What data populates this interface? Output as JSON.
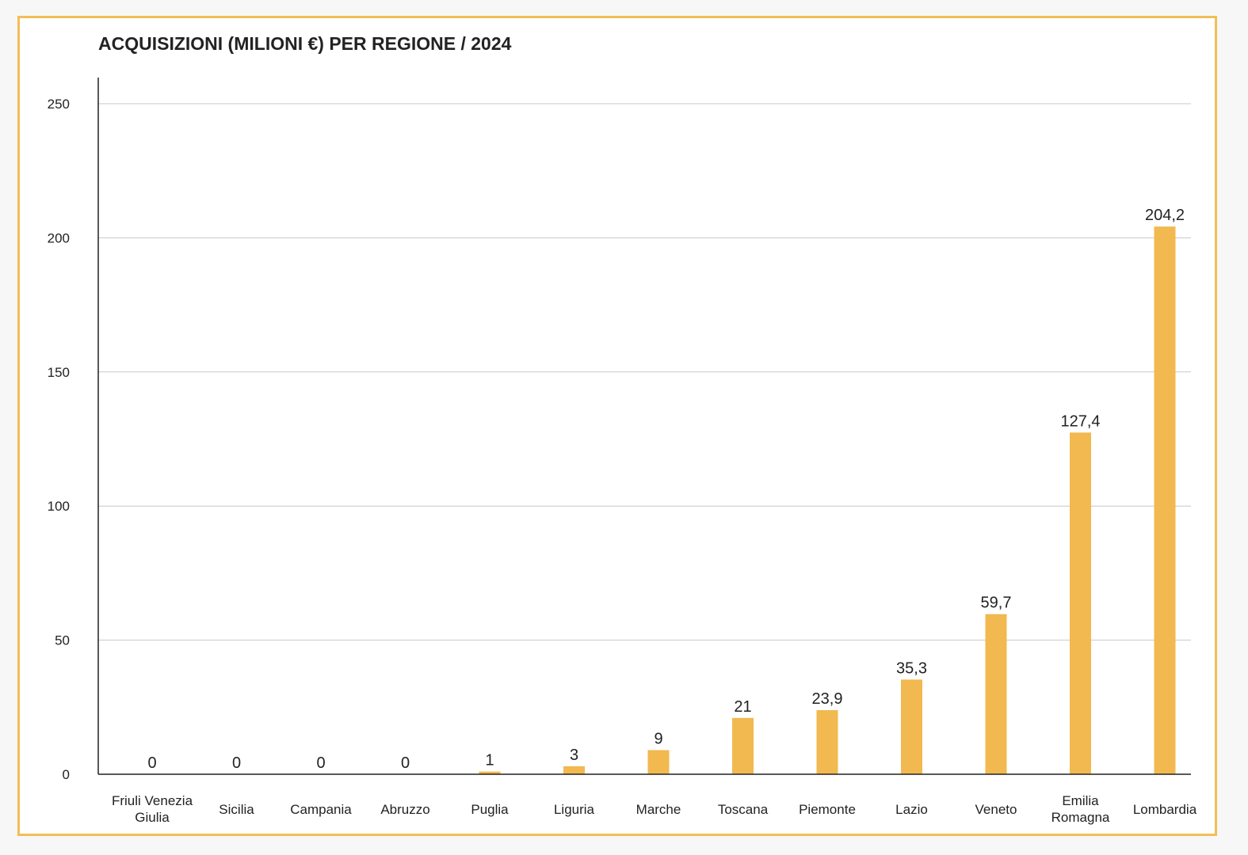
{
  "chart_data": {
    "type": "bar",
    "title": "ACQUISIZIONI (MILIONI €) PER REGIONE / 2024",
    "categories": [
      [
        "Friuli Venezia",
        "Giulia"
      ],
      [
        "Sicilia"
      ],
      [
        "Campania"
      ],
      [
        "Abruzzo"
      ],
      [
        "Puglia"
      ],
      [
        "Liguria"
      ],
      [
        "Marche"
      ],
      [
        "Toscana"
      ],
      [
        "Piemonte"
      ],
      [
        "Lazio"
      ],
      [
        "Veneto"
      ],
      [
        "Emilia",
        "Romagna"
      ],
      [
        "Lombardia"
      ]
    ],
    "values": [
      0,
      0,
      0,
      0,
      1,
      3,
      9,
      21,
      23.9,
      35.3,
      59.7,
      127.4,
      204.2
    ],
    "value_labels": [
      "0",
      "0",
      "0",
      "0",
      "1",
      "3",
      "9",
      "21",
      "23,9",
      "35,3",
      "59,7",
      "127,4",
      "204,2"
    ],
    "yticks": [
      0,
      50,
      100,
      150,
      200,
      250
    ],
    "ylim": [
      0,
      250
    ],
    "xlabel": "",
    "ylabel": "",
    "grid": true,
    "bar_color": "#f1b94f",
    "frame_color": "#f1be57",
    "grid_color": "#c8c8c8"
  }
}
